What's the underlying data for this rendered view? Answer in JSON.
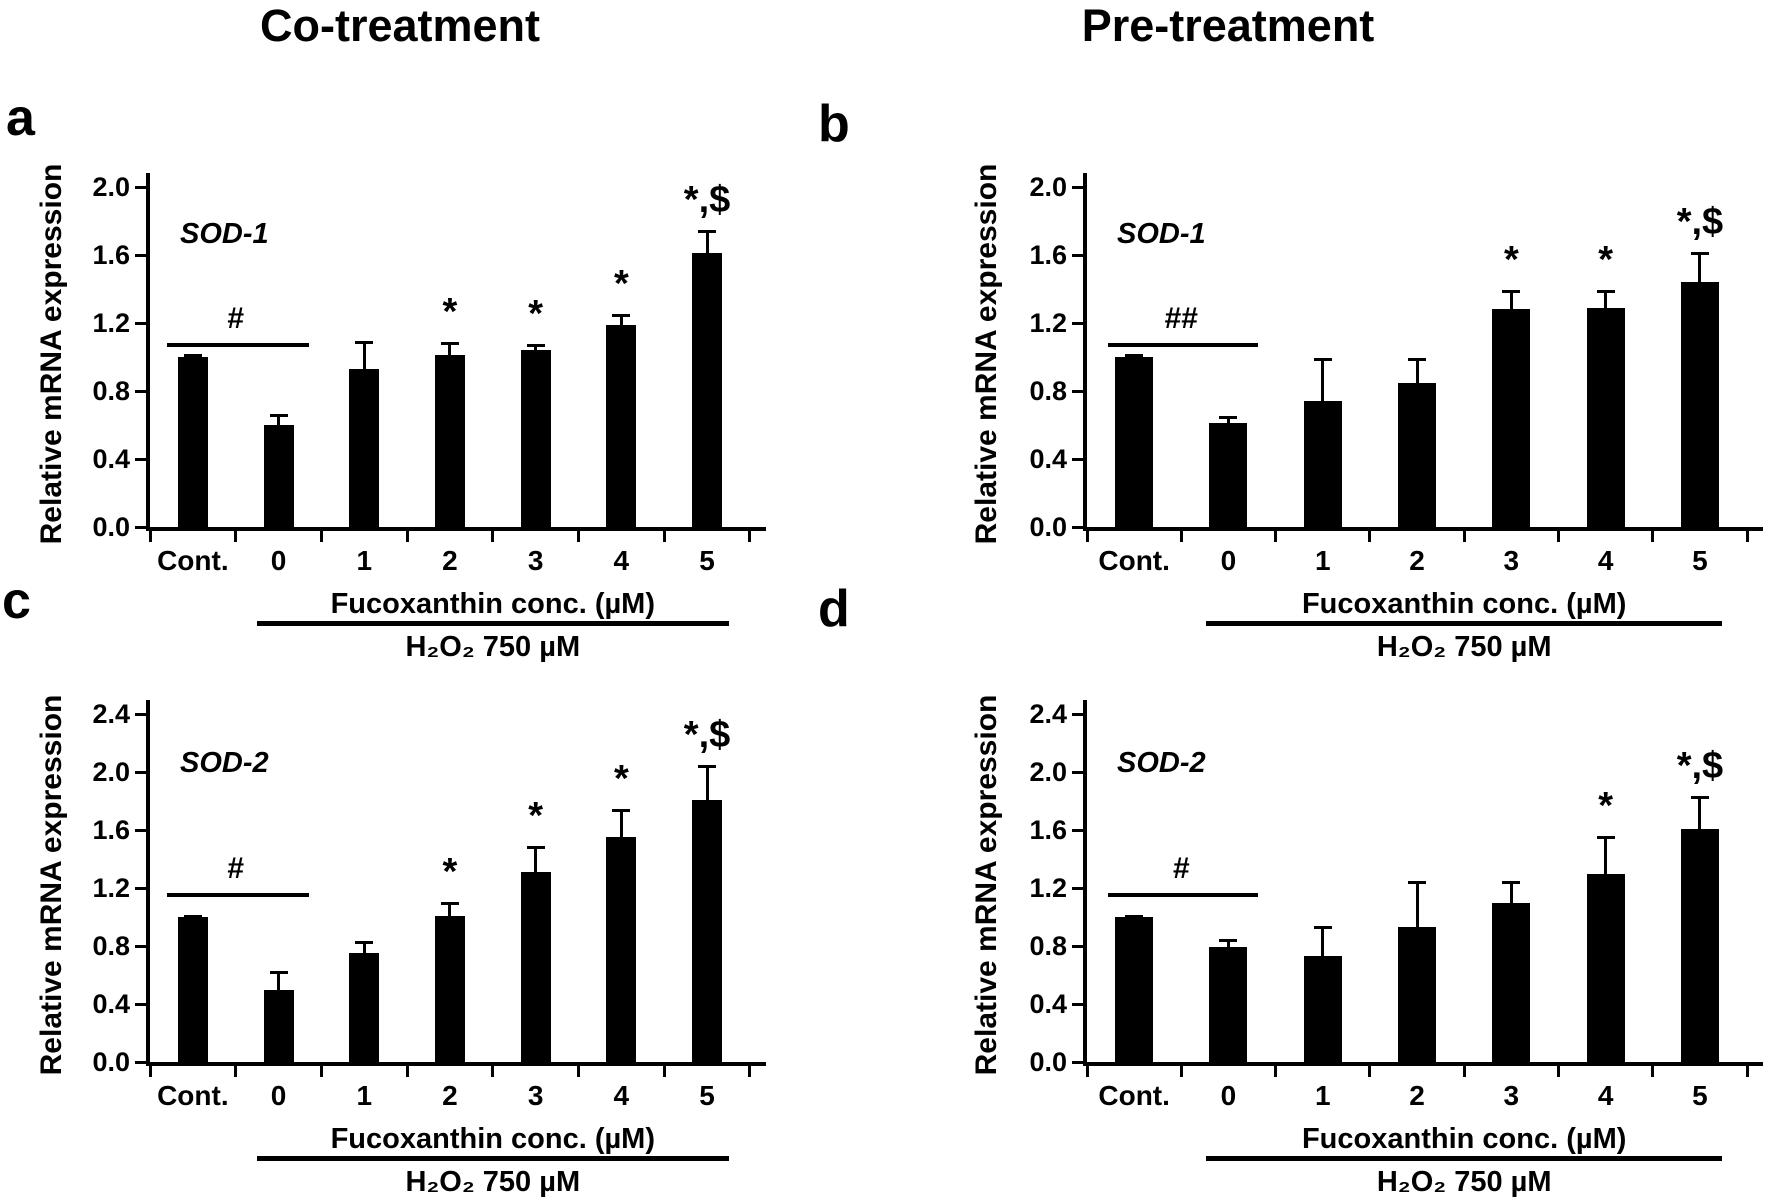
{
  "page": {
    "background": "#ffffff",
    "bar_color": "#000000",
    "text_color": "#000000"
  },
  "column_titles": [
    {
      "label": "Co-treatment"
    },
    {
      "label": "Pre-treatment"
    }
  ],
  "chart_data": [
    {
      "id": "a",
      "panel_letter": "a",
      "type": "bar",
      "title": "Co-treatment",
      "gene": "SOD-1",
      "ylabel": "Relative mRNA expression",
      "xlabel_group": "Fucoxanthin conc. (µM)",
      "xlabel_treatment": "H₂O₂ 750 µM",
      "categories": [
        "Cont.",
        "0",
        "1",
        "2",
        "3",
        "4",
        "5"
      ],
      "values": [
        1.0,
        0.6,
        0.93,
        1.01,
        1.04,
        1.19,
        1.61
      ],
      "errors": [
        0.01,
        0.06,
        0.16,
        0.07,
        0.03,
        0.06,
        0.13
      ],
      "sig": [
        "",
        "",
        "",
        "*",
        "*",
        "*",
        "*,$"
      ],
      "hash_symbol": "#",
      "hash_span": [
        "Cont.",
        "0"
      ],
      "hash_y": 1.08,
      "ylim": [
        0,
        2.0
      ],
      "ytick_step": 0.4,
      "yticks": [
        "0.0",
        "0.4",
        "0.8",
        "1.2",
        "1.6",
        "2.0"
      ],
      "grid": false,
      "legend": false
    },
    {
      "id": "b",
      "panel_letter": "b",
      "type": "bar",
      "title": "Pre-treatment",
      "gene": "SOD-1",
      "ylabel": "Relative mRNA expression",
      "xlabel_group": "Fucoxanthin conc. (µM)",
      "xlabel_treatment": "H₂O₂ 750 µM",
      "categories": [
        "Cont.",
        "0",
        "1",
        "2",
        "3",
        "4",
        "5"
      ],
      "values": [
        1.0,
        0.61,
        0.74,
        0.85,
        1.28,
        1.29,
        1.44
      ],
      "errors": [
        0.01,
        0.04,
        0.25,
        0.14,
        0.11,
        0.1,
        0.17
      ],
      "sig": [
        "",
        "",
        "",
        "",
        "*",
        "*",
        "*,$"
      ],
      "hash_symbol": "##",
      "hash_span": [
        "Cont.",
        "0"
      ],
      "hash_y": 1.08,
      "ylim": [
        0,
        2.0
      ],
      "ytick_step": 0.4,
      "yticks": [
        "0.0",
        "0.4",
        "0.8",
        "1.2",
        "1.6",
        "2.0"
      ],
      "grid": false,
      "legend": false
    },
    {
      "id": "c",
      "panel_letter": "c",
      "type": "bar",
      "title": "Co-treatment",
      "gene": "SOD-2",
      "ylabel": "Relative mRNA expression",
      "xlabel_group": "Fucoxanthin conc. (µM)",
      "xlabel_treatment": "H₂O₂ 750 µM",
      "categories": [
        "Cont.",
        "0",
        "1",
        "2",
        "3",
        "4",
        "5"
      ],
      "values": [
        1.0,
        0.5,
        0.75,
        1.01,
        1.31,
        1.55,
        1.81
      ],
      "errors": [
        0.01,
        0.12,
        0.08,
        0.09,
        0.17,
        0.19,
        0.23
      ],
      "sig": [
        "",
        "",
        "",
        "*",
        "*",
        "*",
        "*,$"
      ],
      "hash_symbol": "#",
      "hash_span": [
        "Cont.",
        "0"
      ],
      "hash_y": 1.165,
      "ylim": [
        0,
        2.4
      ],
      "ytick_step": 0.4,
      "yticks": [
        "0.0",
        "0.4",
        "0.8",
        "1.2",
        "1.6",
        "2.0",
        "2.4"
      ],
      "grid": false,
      "legend": false
    },
    {
      "id": "d",
      "panel_letter": "d",
      "type": "bar",
      "title": "Pre-treatment",
      "gene": "SOD-2",
      "ylabel": "Relative mRNA expression",
      "xlabel_group": "Fucoxanthin conc. (µM)",
      "xlabel_treatment": "H₂O₂ 750 µM",
      "categories": [
        "Cont.",
        "0",
        "1",
        "2",
        "3",
        "4",
        "5"
      ],
      "values": [
        1.0,
        0.79,
        0.73,
        0.93,
        1.1,
        1.3,
        1.61
      ],
      "errors": [
        0.01,
        0.05,
        0.2,
        0.31,
        0.14,
        0.25,
        0.22
      ],
      "sig": [
        "",
        "",
        "",
        "",
        "",
        "*",
        "*,$"
      ],
      "hash_symbol": "#",
      "hash_span": [
        "Cont.",
        "0"
      ],
      "hash_y": 1.165,
      "ylim": [
        0,
        2.4
      ],
      "ytick_step": 0.4,
      "yticks": [
        "0.0",
        "0.4",
        "0.8",
        "1.2",
        "1.6",
        "2.0",
        "2.4"
      ],
      "grid": false,
      "legend": false
    }
  ]
}
